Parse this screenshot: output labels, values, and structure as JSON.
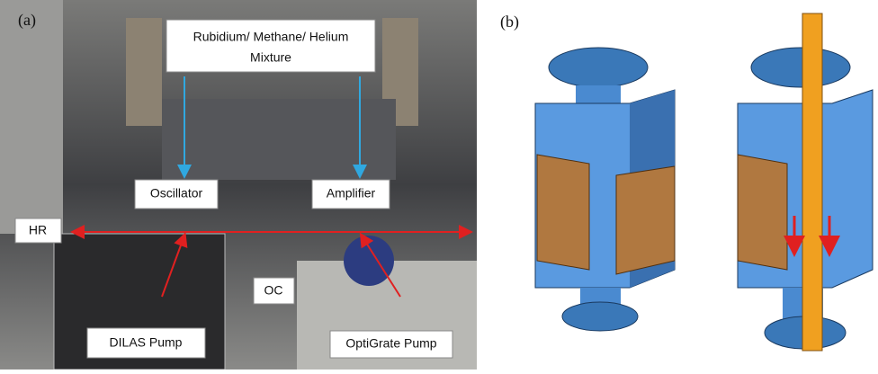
{
  "panels": {
    "a": {
      "label": "(a)",
      "annotations": {
        "gas": [
          "Rubidium/ Methane/ Helium",
          "Mixture"
        ],
        "oscillator": "Oscillator",
        "amplifier": "Amplifier",
        "hr": "HR",
        "oc": "OC",
        "dilas": "DILAS Pump",
        "optigrate": "OptiGrate Pump"
      }
    },
    "b": {
      "label": "(b)"
    }
  }
}
